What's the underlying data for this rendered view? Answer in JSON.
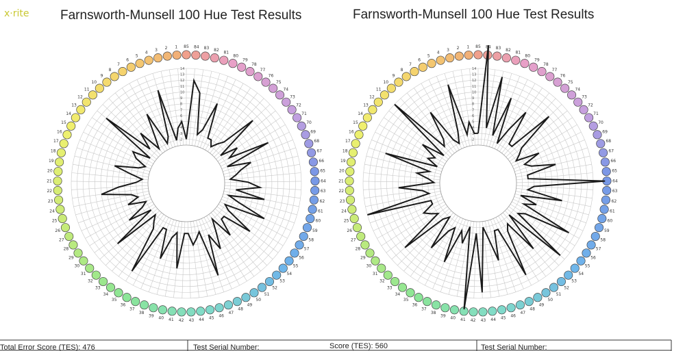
{
  "logo": "x·rite",
  "footer": {
    "left_tes": "Total Error Score (TES): 476",
    "left_serial": "Test Serial Number:",
    "right_tes": "Score (TES): 560",
    "right_serial": "Test Serial Number:"
  },
  "chart_data": [
    {
      "type": "polar-line",
      "title": "Farnsworth-Munsell 100 Hue Test Results",
      "cap_numbers": [
        85,
        84,
        83,
        82,
        81,
        80,
        79,
        78,
        77,
        76,
        75,
        74,
        73,
        72,
        71,
        70,
        69,
        68,
        67,
        66,
        65,
        64,
        63,
        62,
        61,
        60,
        59,
        58,
        57,
        56,
        55,
        54,
        53,
        52,
        51,
        50,
        49,
        48,
        47,
        46,
        45,
        44,
        43,
        42,
        41,
        40,
        39,
        38,
        37,
        36,
        35,
        34,
        33,
        32,
        31,
        30,
        29,
        28,
        27,
        26,
        25,
        24,
        23,
        22,
        21,
        20,
        19,
        18,
        17,
        16,
        15,
        14,
        13,
        12,
        11,
        10,
        9,
        8,
        7,
        6,
        5,
        4,
        3,
        2,
        1
      ],
      "radial_ticks": [
        2,
        3,
        4,
        5,
        6,
        7,
        8,
        9,
        10,
        11,
        12,
        13,
        14
      ],
      "error_scores": [
        2,
        12,
        10,
        3,
        4,
        9,
        3,
        3,
        2,
        3,
        4,
        10,
        2,
        5,
        3,
        10,
        2,
        6,
        4,
        3,
        2,
        5,
        7,
        3,
        8,
        2,
        4,
        9,
        2,
        3,
        8,
        3,
        3,
        6,
        2,
        4,
        7,
        4,
        11,
        3,
        4,
        5,
        3,
        3,
        9,
        3,
        4,
        8,
        3,
        3,
        12,
        4,
        3,
        2,
        10,
        2,
        6,
        3,
        2,
        5,
        3,
        4,
        9,
        6,
        3,
        2,
        4,
        7,
        3,
        2,
        4,
        5,
        2,
        12,
        3,
        6,
        2,
        4,
        8,
        2,
        3,
        11,
        2,
        4,
        5
      ]
    },
    {
      "type": "polar-line",
      "title": "Farnsworth-Munsell 100 Hue Test Results",
      "cap_numbers": [
        85,
        84,
        83,
        82,
        81,
        80,
        79,
        78,
        77,
        76,
        75,
        74,
        73,
        72,
        71,
        70,
        69,
        68,
        67,
        66,
        65,
        64,
        63,
        62,
        61,
        60,
        59,
        58,
        57,
        56,
        55,
        54,
        53,
        52,
        51,
        50,
        49,
        48,
        47,
        46,
        45,
        44,
        43,
        42,
        41,
        40,
        39,
        38,
        37,
        36,
        35,
        34,
        33,
        32,
        31,
        30,
        29,
        28,
        27,
        26,
        25,
        24,
        23,
        22,
        21,
        20,
        19,
        18,
        17,
        16,
        15,
        14,
        13,
        12,
        11,
        10,
        9,
        8,
        7,
        6,
        5,
        4,
        3,
        2,
        1
      ],
      "radial_ticks": [
        2,
        3,
        4,
        5,
        6,
        7,
        8,
        9,
        10,
        11,
        12,
        13,
        14
      ],
      "error_scores": [
        3,
        18,
        4,
        13,
        3,
        10,
        2,
        5,
        9,
        3,
        3,
        11,
        4,
        3,
        2,
        6,
        3,
        4,
        8,
        3,
        3,
        16,
        4,
        3,
        9,
        2,
        5,
        3,
        12,
        4,
        3,
        13,
        2,
        9,
        3,
        4,
        12,
        3,
        3,
        8,
        4,
        2,
        13,
        3,
        16,
        2,
        5,
        3,
        9,
        3,
        4,
        8,
        2,
        3,
        11,
        3,
        4,
        5,
        3,
        3,
        14,
        3,
        4,
        8,
        2,
        3,
        5,
        3,
        11,
        2,
        4,
        3,
        6,
        2,
        14,
        3,
        4,
        9,
        3,
        2,
        4,
        12,
        3,
        5,
        3
      ]
    }
  ]
}
